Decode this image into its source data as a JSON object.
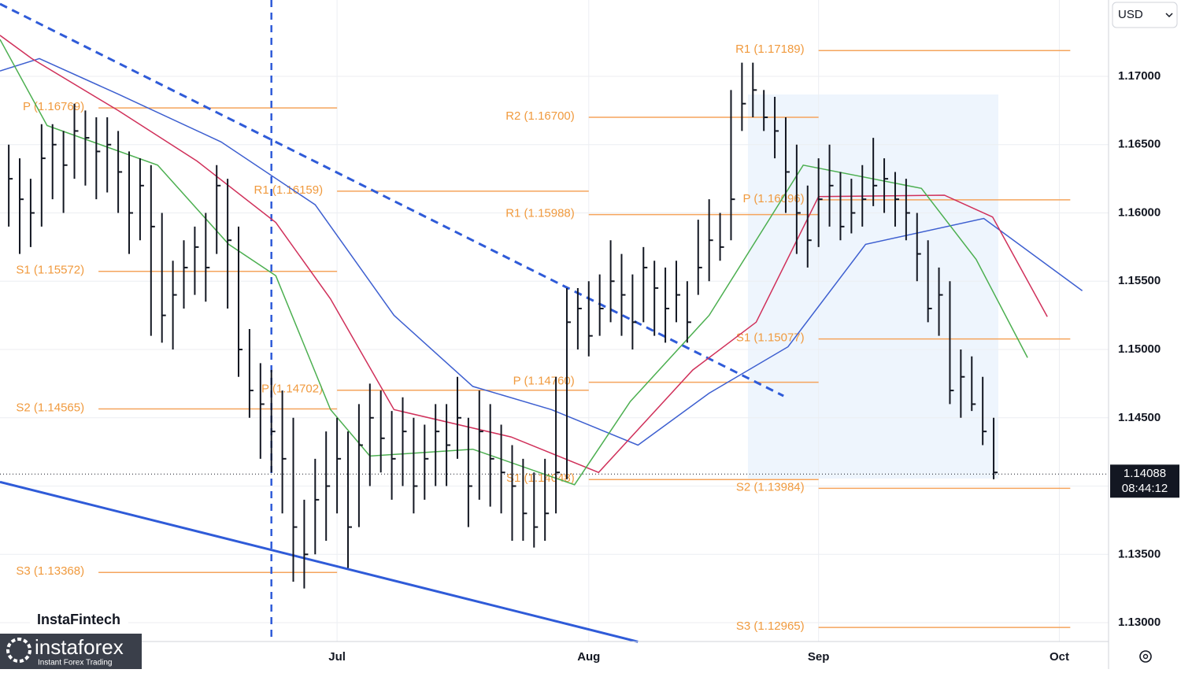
{
  "chart_data": {
    "type": "hlc",
    "currency": "USD",
    "x": [
      -30,
      -29,
      -28,
      -27,
      -26,
      -25,
      -24,
      -23,
      -22,
      -21,
      -20,
      -19,
      -18,
      -17,
      -16,
      -15,
      -14,
      -13,
      -12,
      -11,
      -10,
      -9,
      -8,
      -7,
      -6,
      -5,
      -4,
      -3,
      -2,
      -1,
      0,
      1,
      2,
      3,
      4,
      5,
      6,
      7,
      8,
      9,
      10,
      11,
      12,
      13,
      14,
      15,
      16,
      17,
      18,
      19,
      20,
      21,
      22,
      23,
      24,
      25,
      26,
      27,
      28,
      29,
      30,
      31,
      32,
      33,
      34,
      35,
      36,
      37,
      38,
      39,
      40,
      41,
      42,
      43,
      44,
      45,
      46,
      47,
      48,
      49,
      50,
      51,
      52,
      53,
      54,
      55,
      56,
      57,
      58,
      59,
      60
    ],
    "high": [
      1.165,
      1.164,
      1.1625,
      1.1665,
      1.1665,
      1.166,
      1.168,
      1.1675,
      1.167,
      1.167,
      1.166,
      1.1645,
      1.164,
      1.1635,
      1.16,
      1.1565,
      1.158,
      1.159,
      1.16,
      1.1635,
      1.1625,
      1.159,
      1.1515,
      1.149,
      1.1485,
      1.147,
      1.145,
      1.139,
      1.142,
      1.144,
      1.145,
      1.144,
      1.146,
      1.1475,
      1.147,
      1.1455,
      1.1465,
      1.145,
      1.1445,
      1.146,
      1.146,
      1.148,
      1.145,
      1.147,
      1.146,
      1.1445,
      1.143,
      1.142,
      1.141,
      1.142,
      1.148,
      1.1545,
      1.1545,
      1.155,
      1.1555,
      1.158,
      1.157,
      1.1555,
      1.1575,
      1.1565,
      1.156,
      1.1565,
      1.155,
      1.1595,
      1.161,
      1.16,
      1.169,
      1.171,
      1.171,
      1.169,
      1.1685,
      1.167,
      1.165,
      1.162,
      1.164,
      1.165,
      1.163,
      1.1625,
      1.1635,
      1.1655,
      1.164,
      1.163,
      1.1625,
      1.16,
      1.158,
      1.156,
      1.155,
      1.15,
      1.1495,
      1.148,
      1.145
    ],
    "low": [
      1.159,
      1.157,
      1.1575,
      1.159,
      1.161,
      1.16,
      1.1625,
      1.162,
      1.161,
      1.1615,
      1.16,
      1.157,
      1.158,
      1.151,
      1.1505,
      1.15,
      1.153,
      1.154,
      1.1535,
      1.157,
      1.153,
      1.148,
      1.145,
      1.142,
      1.141,
      1.138,
      1.133,
      1.1325,
      1.135,
      1.136,
      1.138,
      1.134,
      1.137,
      1.14,
      1.141,
      1.139,
      1.14,
      1.138,
      1.139,
      1.14,
      1.14,
      1.142,
      1.137,
      1.139,
      1.1385,
      1.138,
      1.136,
      1.136,
      1.1355,
      1.136,
      1.138,
      1.1405,
      1.15,
      1.1495,
      1.151,
      1.152,
      1.151,
      1.15,
      1.152,
      1.151,
      1.1505,
      1.152,
      1.1505,
      1.154,
      1.155,
      1.1565,
      1.158,
      1.166,
      1.167,
      1.166,
      1.164,
      1.16,
      1.157,
      1.156,
      1.1575,
      1.159,
      1.158,
      1.1585,
      1.159,
      1.1605,
      1.16,
      1.159,
      1.158,
      1.155,
      1.152,
      1.151,
      1.146,
      1.145,
      1.1455,
      1.143,
      1.1405
    ],
    "close": [
      1.1625,
      1.161,
      1.16,
      1.164,
      1.165,
      1.1635,
      1.166,
      1.1655,
      1.1645,
      1.165,
      1.163,
      1.16,
      1.162,
      1.159,
      1.1525,
      1.154,
      1.156,
      1.1575,
      1.156,
      1.162,
      1.158,
      1.15,
      1.147,
      1.146,
      1.144,
      1.142,
      1.137,
      1.135,
      1.139,
      1.14,
      1.142,
      1.137,
      1.143,
      1.145,
      1.1435,
      1.142,
      1.144,
      1.14,
      1.142,
      1.144,
      1.143,
      1.145,
      1.14,
      1.144,
      1.142,
      1.141,
      1.14,
      1.138,
      1.137,
      1.138,
      1.141,
      1.152,
      1.153,
      1.151,
      1.153,
      1.155,
      1.154,
      1.152,
      1.156,
      1.1545,
      1.153,
      1.154,
      1.152,
      1.156,
      1.158,
      1.1575,
      1.161,
      1.168,
      1.169,
      1.167,
      1.166,
      1.163,
      1.16,
      1.158,
      1.161,
      1.162,
      1.159,
      1.16,
      1.161,
      1.162,
      1.1625,
      1.161,
      1.16,
      1.157,
      1.153,
      1.154,
      1.147,
      1.148,
      1.146,
      1.144,
      1.141
    ],
    "color": "#131722",
    "xlim": [
      -30.8,
      70.5
    ],
    "ylim": [
      1.12862,
      1.17559
    ],
    "xticks": [
      {
        "value": 0,
        "label": "Jul"
      },
      {
        "value": 23,
        "label": "Aug"
      },
      {
        "value": 44,
        "label": "Sep"
      },
      {
        "value": 66,
        "label": "Oct"
      }
    ],
    "yticks": [
      {
        "value": 1.13,
        "label": "1.13000"
      },
      {
        "value": 1.135,
        "label": "1.13500"
      },
      {
        "value": 1.14,
        "label": "1.14000"
      },
      {
        "value": 1.145,
        "label": "1.14500"
      },
      {
        "value": 1.15,
        "label": "1.15000"
      },
      {
        "value": 1.155,
        "label": "1.15500"
      },
      {
        "value": 1.16,
        "label": "1.16000"
      },
      {
        "value": 1.165,
        "label": "1.16500"
      },
      {
        "value": 1.17,
        "label": "1.17000"
      }
    ],
    "grid": true,
    "moving_averages": [
      {
        "color": "#3d5fd0",
        "x": [
          -30.8,
          -27.2,
          -20.0,
          -10.6,
          -2.0,
          5.2,
          12.4,
          19.6,
          27.5,
          34.0,
          41.2,
          48.3,
          59.1,
          68.1
        ],
        "values": [
          1.1704,
          1.1713,
          1.1687,
          1.1652,
          1.1606,
          1.1525,
          1.1473,
          1.1456,
          1.143,
          1.1468,
          1.1502,
          1.1577,
          1.1596,
          1.1543
        ]
      },
      {
        "color": "#d0305a",
        "x": [
          -30.8,
          -27.9,
          -20.0,
          -12.8,
          -5.6,
          -0.6,
          5.2,
          15.9,
          23.9,
          32.5,
          38.3,
          44.0,
          55.5,
          59.9,
          64.9
        ],
        "values": [
          1.173,
          1.1713,
          1.1675,
          1.1638,
          1.1593,
          1.1537,
          1.1456,
          1.1436,
          1.141,
          1.1485,
          1.152,
          1.1612,
          1.1613,
          1.1597,
          1.1524
        ]
      },
      {
        "color": "#4caf50",
        "x": [
          -30.8,
          -26.5,
          -16.4,
          -9.9,
          -5.6,
          -0.6,
          3.0,
          12.4,
          21.7,
          26.8,
          34.0,
          42.6,
          53.4,
          58.4,
          63.1
        ],
        "values": [
          1.1727,
          1.1664,
          1.1635,
          1.1577,
          1.1554,
          1.1456,
          1.1422,
          1.1427,
          1.1401,
          1.1462,
          1.1525,
          1.1635,
          1.1618,
          1.1566,
          1.1494
        ]
      }
    ],
    "pivot_color": "#f5a45c",
    "pivots": [
      {
        "label": "P (1.16769)",
        "value": 1.16769,
        "x0": -21.8,
        "x1": 0
      },
      {
        "label": "S1 (1.15572)",
        "value": 1.15572,
        "x0": -21.8,
        "x1": 0
      },
      {
        "label": "S2 (1.14565)",
        "value": 1.14565,
        "x0": -21.8,
        "x1": 0
      },
      {
        "label": "S3 (1.13368)",
        "value": 1.13368,
        "x0": -21.8,
        "x1": 0
      },
      {
        "label": "R1 (1.16159)",
        "value": 1.16159,
        "x0": 0,
        "x1": 23
      },
      {
        "label": "P (1.14702)",
        "value": 1.14702,
        "x0": 0,
        "x1": 23
      },
      {
        "label": "R2 (1.16700)",
        "value": 1.167,
        "x0": 23,
        "x1": 44
      },
      {
        "label": "R1 (1.15988)",
        "value": 1.15988,
        "x0": 23,
        "x1": 44
      },
      {
        "label": "P (1.14760)",
        "value": 1.1476,
        "x0": 23,
        "x1": 44
      },
      {
        "label": "S1 (1.14048)",
        "value": 1.14048,
        "x0": 23,
        "x1": 44
      },
      {
        "label": "R1 (1.17189)",
        "value": 1.17189,
        "x0": 44,
        "x1": 67
      },
      {
        "label": "P (1.16096)",
        "value": 1.16096,
        "x0": 44,
        "x1": 67
      },
      {
        "label": "S1 (1.15077)",
        "value": 1.15077,
        "x0": 44,
        "x1": 67
      },
      {
        "label": "S2 (1.13984)",
        "value": 1.13984,
        "x0": 44,
        "x1": 67
      },
      {
        "label": "S3 (1.12965)",
        "value": 1.12965,
        "x0": 44,
        "x1": 67
      }
    ],
    "trend_lines": [
      {
        "color": "#2f5bd8",
        "dashed": true,
        "x": [
          -30.8,
          40.8
        ],
        "values": [
          1.1753,
          1.1466
        ]
      },
      {
        "color": "#2f5bd8",
        "dashed": false,
        "x": [
          -30.8,
          27.5
        ],
        "values": [
          1.1403,
          1.1286
        ]
      }
    ],
    "vertical_line": {
      "color": "#2f5bd8",
      "x": -6.0
    },
    "last_price": {
      "value": 1.14088,
      "label": "1.14088",
      "time": "08:44:12"
    }
  },
  "branding": {
    "brand": "InstaFintech",
    "logo": "instaforex",
    "tagline": "Instant Forex Trading"
  }
}
